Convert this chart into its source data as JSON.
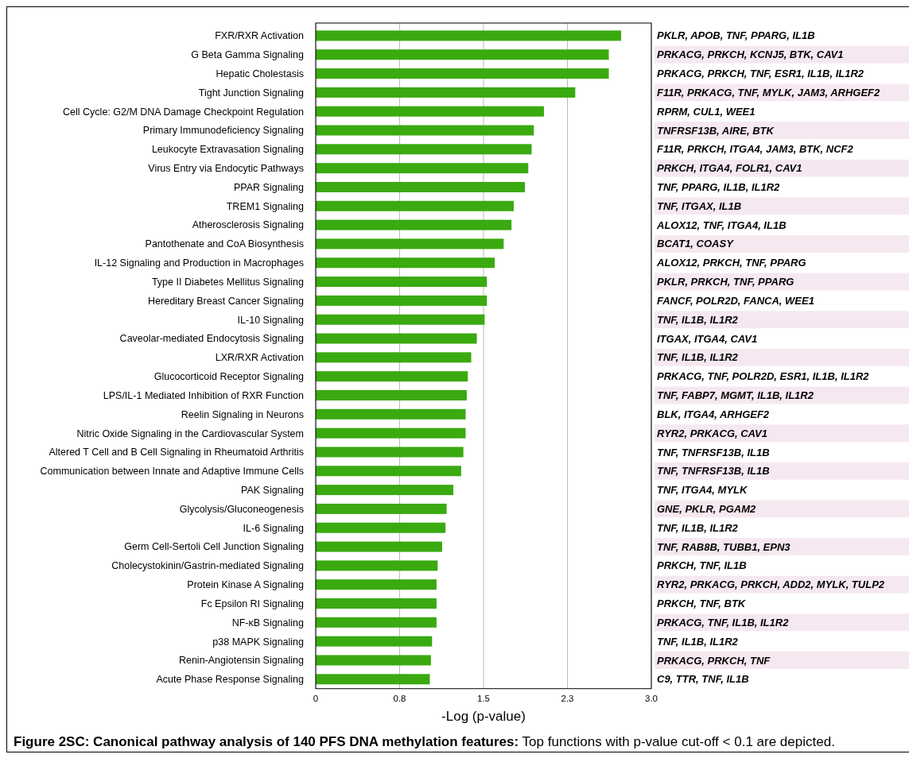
{
  "chart_data": {
    "type": "bar",
    "orientation": "horizontal",
    "title": "Figure 2SC: Canonical pathway analysis of 140 PFS DNA methylation features:",
    "xlabel": "-Log (p-value)",
    "color": "#3aaa10",
    "grid": "x",
    "xlim": [
      0,
      3.0
    ],
    "xticks": [
      0,
      {
        "value": 0.75,
        "label": "0.8"
      },
      1.5,
      {
        "value": 2.25,
        "label": "2.3"
      },
      {
        "value": 3.0,
        "label": "3.0"
      }
    ],
    "categories": [
      "FXR/RXR Activation",
      "G Beta Gamma Signaling",
      "Hepatic Cholestasis",
      "Tight Junction Signaling",
      "Cell Cycle: G2/M DNA Damage Checkpoint Regulation",
      "Primary Immunodeficiency Signaling",
      "Leukocyte Extravasation Signaling",
      "Virus Entry via Endocytic Pathways",
      "PPAR Signaling",
      "TREM1 Signaling",
      "Atherosclerosis Signaling",
      "Pantothenate and CoA Biosynthesis",
      "IL-12 Signaling and Production in Macrophages",
      "Type II Diabetes Mellitus Signaling",
      "Hereditary Breast Cancer Signaling",
      "IL-10 Signaling",
      "Caveolar-mediated Endocytosis Signaling",
      "LXR/RXR Activation",
      "Glucocorticoid Receptor Signaling",
      "LPS/IL-1 Mediated Inhibition of RXR Function",
      "Reelin Signaling in Neurons",
      "Nitric Oxide Signaling in the Cardiovascular System",
      "Altered T Cell and B Cell Signaling in Rheumatoid Arthritis",
      "Communication between Innate and Adaptive Immune Cells",
      "PAK Signaling",
      "Glycolysis/Gluconeogenesis",
      "IL-6 Signaling",
      "Germ Cell-Sertoli Cell Junction Signaling",
      "Cholecystokinin/Gastrin-mediated Signaling",
      "Protein Kinase A Signaling",
      "Fc Epsilon RI Signaling",
      "NF-κB Signaling",
      "p38 MAPK Signaling",
      "Renin-Angiotensin Signaling",
      "Acute Phase Response Signaling"
    ],
    "values": [
      2.73,
      2.62,
      2.62,
      2.32,
      2.04,
      1.95,
      1.93,
      1.9,
      1.87,
      1.77,
      1.75,
      1.68,
      1.6,
      1.53,
      1.53,
      1.51,
      1.44,
      1.39,
      1.36,
      1.35,
      1.34,
      1.34,
      1.32,
      1.3,
      1.23,
      1.17,
      1.16,
      1.13,
      1.09,
      1.08,
      1.08,
      1.08,
      1.04,
      1.03,
      1.02
    ],
    "annotations": [
      "PKLR, APOB, TNF, PPARG, IL1B",
      "PRKACG, PRKCH, KCNJ5, BTK, CAV1",
      "PRKACG, PRKCH, TNF, ESR1, IL1B, IL1R2",
      "F11R, PRKACG, TNF, MYLK, JAM3, ARHGEF2",
      "RPRM, CUL1, WEE1",
      "TNFRSF13B, AIRE, BTK",
      "F11R, PRKCH, ITGA4, JAM3, BTK, NCF2",
      "PRKCH, ITGA4, FOLR1, CAV1",
      "TNF, PPARG, IL1B, IL1R2",
      "TNF, ITGAX, IL1B",
      "ALOX12, TNF, ITGA4, IL1B",
      "BCAT1, COASY",
      "ALOX12, PRKCH, TNF, PPARG",
      "PKLR, PRKCH, TNF, PPARG",
      "FANCF, POLR2D, FANCA, WEE1",
      "TNF, IL1B, IL1R2",
      "ITGAX, ITGA4, CAV1",
      "TNF, IL1B, IL1R2",
      "PRKACG, TNF, POLR2D, ESR1, IL1B, IL1R2",
      "TNF, FABP7, MGMT, IL1B, IL1R2",
      "BLK, ITGA4, ARHGEF2",
      "RYR2, PRKACG, CAV1",
      "TNF, TNFRSF13B, IL1B",
      "TNF, TNFRSF13B, IL1B",
      "TNF, ITGA4, MYLK",
      "GNE, PKLR, PGAM2",
      "TNF, IL1B, IL1R2",
      "TNF, RAB8B, TUBB1, EPN3",
      "PRKCH, TNF, IL1B",
      "RYR2, PRKACG, PRKCH, ADD2, MYLK, TULP2",
      "PRKCH, TNF, BTK",
      "PRKACG, TNF, IL1B, IL1R2",
      "TNF, IL1B, IL1R2",
      "PRKACG, PRKCH, TNF",
      "C9, TTR, TNF, IL1B",
      "Top functions with p-value cut-off < 0.1 are depicted."
    ]
  }
}
